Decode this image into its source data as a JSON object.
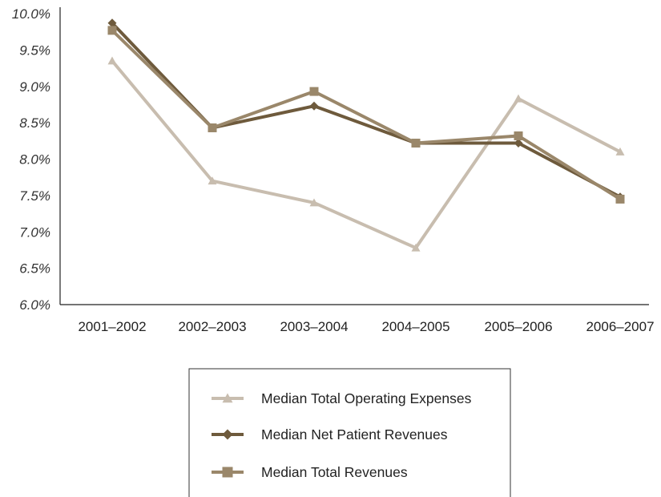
{
  "chart_data": {
    "type": "line",
    "categories": [
      "2001–2002",
      "2002–2003",
      "2003–2004",
      "2004–2005",
      "2005–2006",
      "2006–2007"
    ],
    "y_tick_labels": [
      "6.0%",
      "6.5%",
      "7.0%",
      "7.5%",
      "8.0%",
      "8.5%",
      "9.0%",
      "9.5%",
      "10.0%"
    ],
    "y_ticks": [
      6.0,
      6.5,
      7.0,
      7.5,
      8.0,
      8.5,
      9.0,
      9.5,
      10.0
    ],
    "ylim": [
      6.0,
      10.0
    ],
    "grid": false,
    "legend_position": "bottom-center",
    "series": [
      {
        "name": "Median Total Operating Expenses",
        "values": [
          9.35,
          7.7,
          7.4,
          6.78,
          8.83,
          8.1
        ],
        "color": "#c8bdaf",
        "marker": "triangle"
      },
      {
        "name": "Median Net Patient Revenues",
        "values": [
          9.87,
          8.43,
          8.73,
          8.22,
          8.22,
          7.48
        ],
        "color": "#6e5a3c",
        "marker": "diamond"
      },
      {
        "name": "Median Total Revenues",
        "values": [
          9.77,
          8.43,
          8.93,
          8.22,
          8.32,
          7.45
        ],
        "color": "#9a876a",
        "marker": "square"
      }
    ]
  }
}
